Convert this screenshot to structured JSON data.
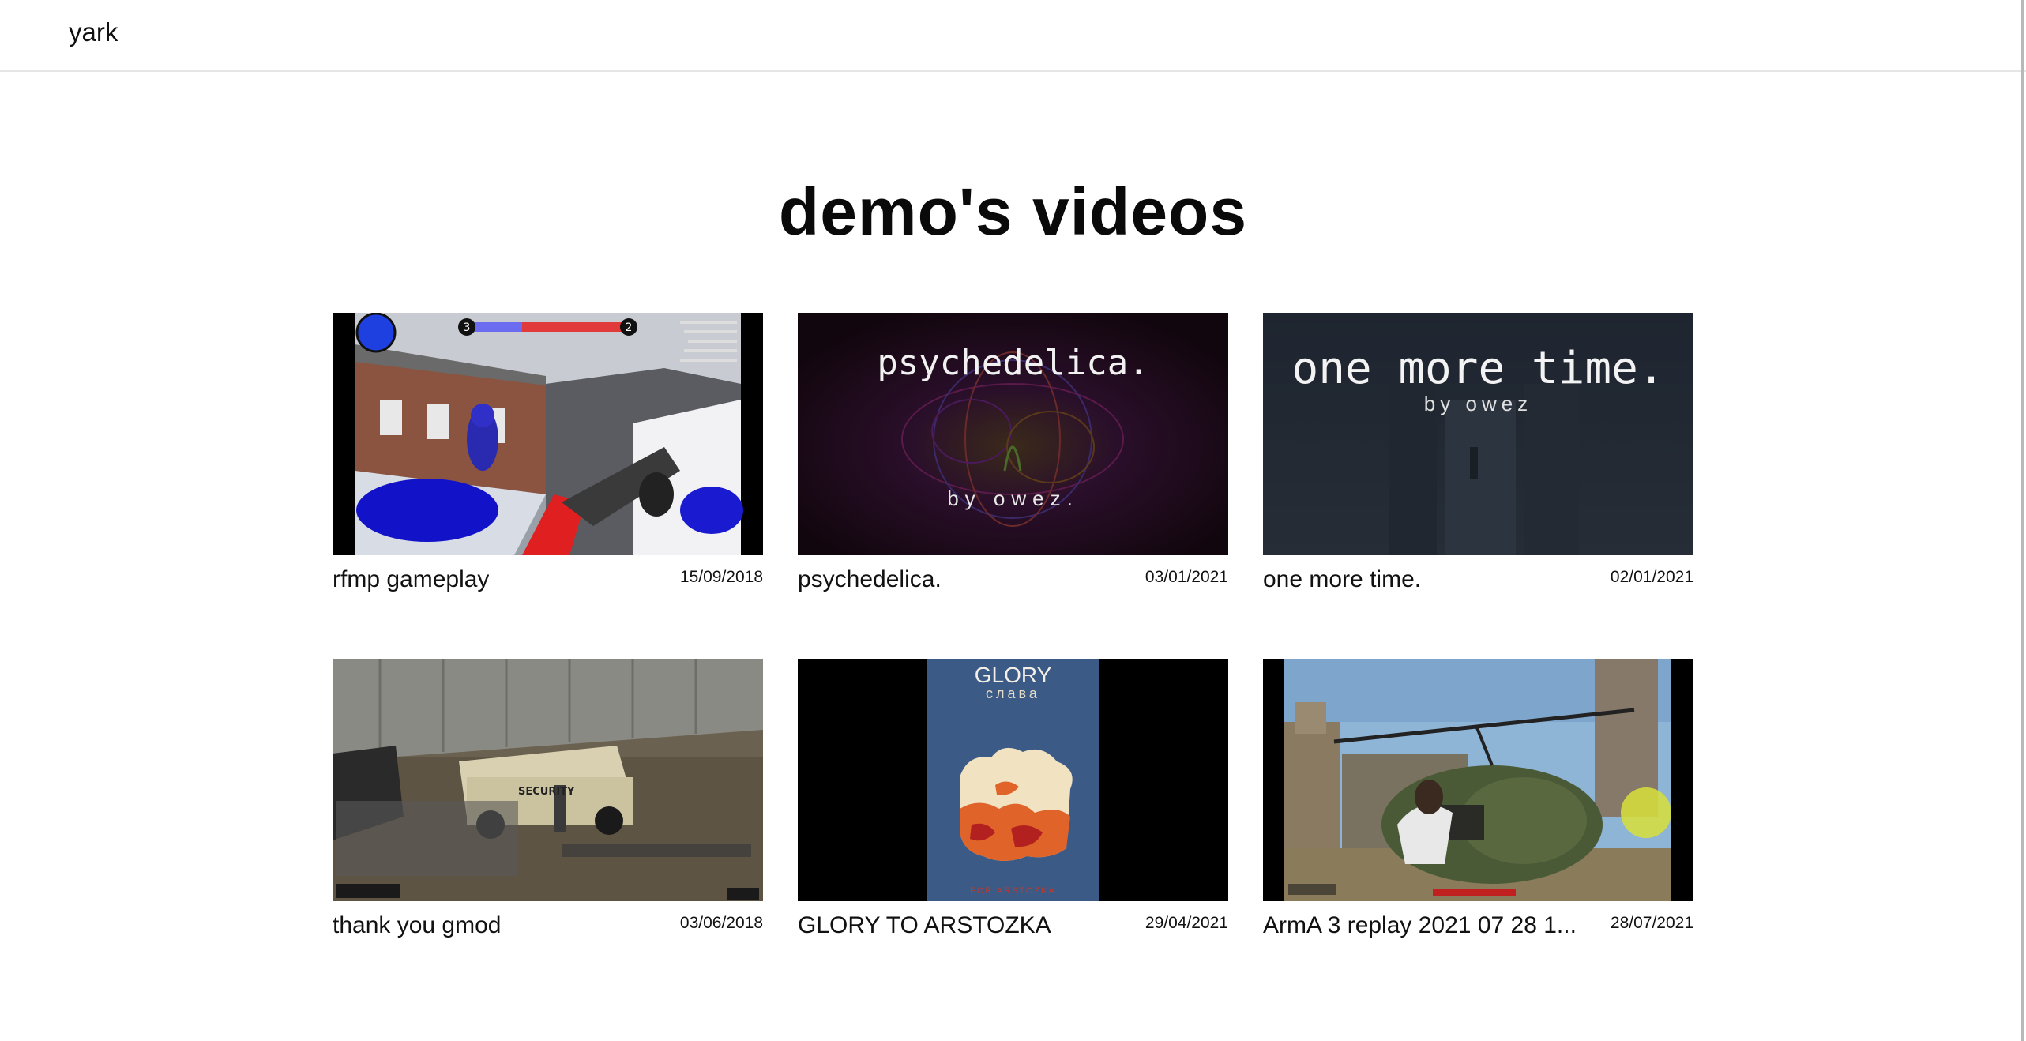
{
  "header": {
    "brand": "yark"
  },
  "page": {
    "title": "demo's videos"
  },
  "videos": [
    {
      "title": "rfmp gameplay",
      "date": "15/09/2018",
      "hud_left": "3",
      "hud_right": "2"
    },
    {
      "title": "psychedelica.",
      "date": "03/01/2021",
      "overlay_title": "psychedelica.",
      "overlay_sub": "by owez."
    },
    {
      "title": "one more time.",
      "date": "02/01/2021",
      "overlay_title": "one more time.",
      "overlay_sub": "by owez"
    },
    {
      "title": "thank you gmod",
      "date": "03/06/2018",
      "vehicle_text": "SECURITY"
    },
    {
      "title": "GLORY TO ARSTOZKA",
      "date": "29/04/2021",
      "poster_title": "GLORY",
      "poster_sub": "слава",
      "poster_footer": "FOR ARSTOZKA"
    },
    {
      "title": "ArmA 3 replay 2021 07 28 1...",
      "date": "28/07/2021"
    }
  ],
  "colors": {
    "header_border": "#e6e6e6",
    "text": "#111111"
  }
}
